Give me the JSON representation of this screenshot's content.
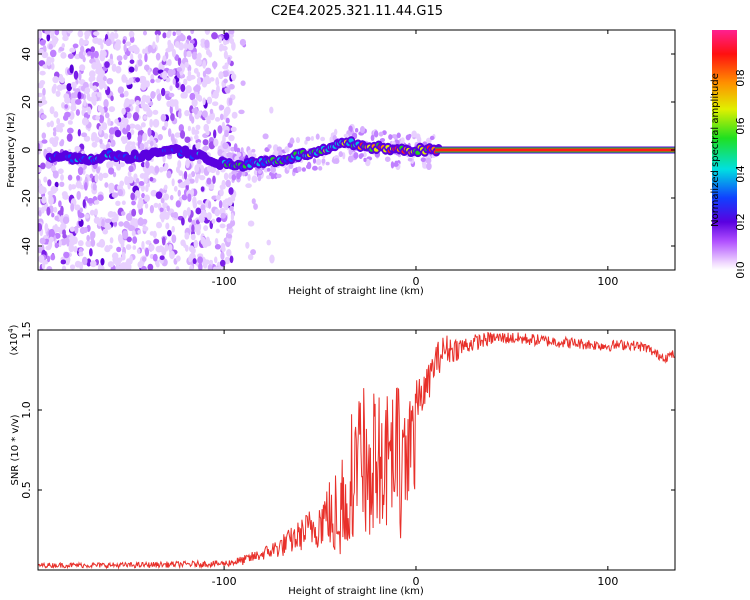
{
  "chart_data": [
    {
      "type": "heatmap",
      "title": "C2E4.2025.321.11.44.G15",
      "xlabel": "Height of straight line (km)",
      "ylabel": "Frequency (Hz)",
      "xlim": [
        -197,
        135
      ],
      "ylim": [
        -50,
        50
      ],
      "xticks": [
        -100,
        0,
        100
      ],
      "xtick_labels": [
        "-100",
        "0",
        "100"
      ],
      "yticks": [
        -40,
        -20,
        0,
        20,
        40
      ],
      "ytick_labels": [
        "-40",
        "-20",
        "0",
        "20",
        "40"
      ],
      "ridge": {
        "x": [
          -185,
          -170,
          -160,
          -150,
          -140,
          -130,
          -120,
          -110,
          -100,
          -90,
          -80,
          -70,
          -60,
          -50,
          -40,
          -35,
          -30,
          -20,
          -10,
          0,
          10,
          20,
          50,
          80,
          110,
          135
        ],
        "y": [
          -3,
          -4,
          -2,
          -3,
          -2,
          0,
          -1,
          -3,
          -6,
          -6,
          -5,
          -4,
          -2,
          -1,
          2,
          3,
          2,
          1,
          0,
          0,
          0,
          0,
          0,
          0,
          0,
          0
        ]
      },
      "colorbar": {
        "label": "Normalized spectral amplitude",
        "range": [
          0,
          1
        ],
        "ticks": [
          0.0,
          0.2,
          0.4,
          0.6,
          0.8
        ],
        "tick_labels": [
          "0.0",
          "0.2",
          "0.4",
          "0.6",
          "0.8"
        ],
        "colormap": "rainbow (white-purple-blue-cyan-green-yellow-orange-red-magenta)"
      }
    },
    {
      "type": "line",
      "xlabel": "Height of straight line (km)",
      "ylabel": "SNR (10 * v/v)",
      "y_multiplier": "(x10^4)",
      "y_multiplier_base": "(x10",
      "y_multiplier_exp": "4",
      "y_multiplier_close": ")",
      "xlim": [
        -197,
        135
      ],
      "ylim": [
        0,
        1.5
      ],
      "xticks": [
        -100,
        0,
        100
      ],
      "xtick_labels": [
        "-100",
        "0",
        "100"
      ],
      "yticks": [
        0.5,
        1.0,
        1.5
      ],
      "ytick_labels": [
        "0.5",
        "1.0",
        "1.5"
      ],
      "series": [
        {
          "name": "SNR",
          "color": "#e8302a",
          "envelope_x": [
            -197,
            -150,
            -100,
            -90,
            -80,
            -70,
            -60,
            -50,
            -40,
            -35,
            -30,
            -25,
            -20,
            -15,
            -10,
            -5,
            0,
            5,
            10,
            15,
            20,
            30,
            40,
            50,
            60,
            70,
            80,
            90,
            100,
            110,
            120,
            125,
            130,
            135
          ],
          "envelope_y": [
            0.03,
            0.03,
            0.04,
            0.06,
            0.1,
            0.15,
            0.22,
            0.3,
            0.45,
            0.65,
            0.85,
            0.9,
            0.8,
            0.85,
            0.95,
            0.98,
            1.05,
            1.12,
            1.3,
            1.38,
            1.38,
            1.42,
            1.45,
            1.45,
            1.44,
            1.43,
            1.42,
            1.41,
            1.4,
            1.41,
            1.39,
            1.35,
            1.33,
            1.35
          ],
          "noise_amplitude_x": [
            -197,
            -100,
            -80,
            -60,
            -45,
            -35,
            -25,
            -15,
            -5,
            5,
            15,
            25,
            40,
            135
          ],
          "noise_amplitude_y": [
            0.015,
            0.02,
            0.04,
            0.1,
            0.2,
            0.3,
            0.3,
            0.25,
            0.15,
            0.12,
            0.1,
            0.06,
            0.04,
            0.03
          ]
        }
      ]
    }
  ]
}
